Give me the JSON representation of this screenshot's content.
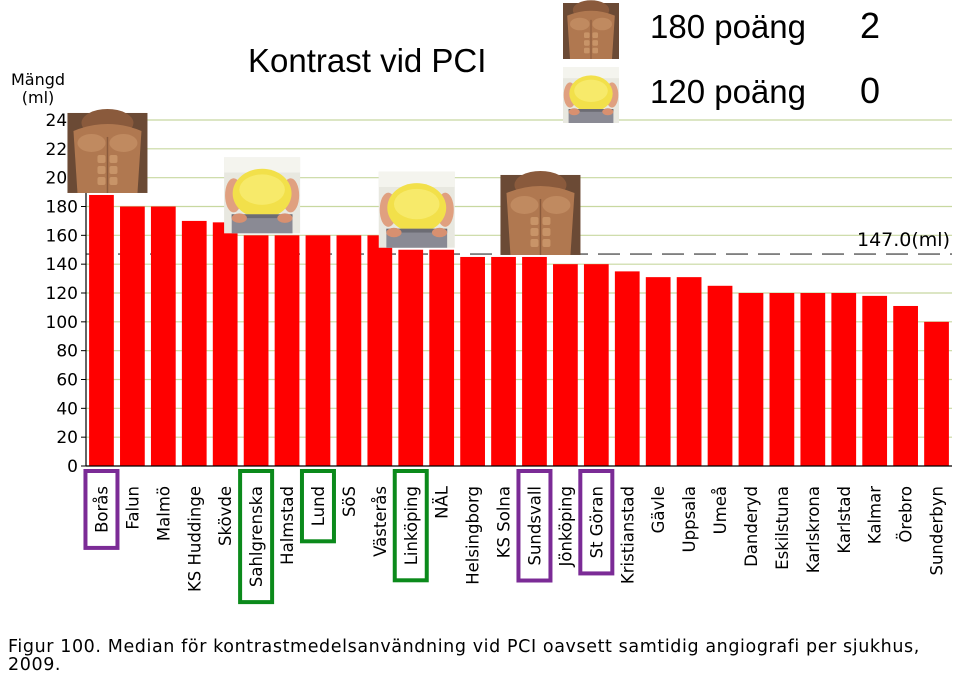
{
  "slide": {
    "title": "Kontrast vid PCI",
    "legend_rows": [
      {
        "label": "180 poäng",
        "count": "2",
        "icon": "muscular-torso-icon"
      },
      {
        "label": "120 poäng",
        "count": "0",
        "icon": "overweight-torso-icon"
      }
    ]
  },
  "chart_data": {
    "type": "bar",
    "title": "",
    "ylabel": "Mängd (ml)",
    "xlabel": "",
    "ylim": [
      0,
      240
    ],
    "yticks": [
      0,
      20,
      40,
      60,
      80,
      100,
      120,
      140,
      160,
      180,
      200,
      220,
      240
    ],
    "grid": true,
    "bar_color": "#ff0000",
    "grid_color": "#c8d8a0",
    "categories": [
      "Borås",
      "Falun",
      "Malmö",
      "KS Huddinge",
      "Skövde",
      "Sahlgrenska",
      "Halmstad",
      "Lund",
      "SöS",
      "Västerås",
      "Linköping",
      "NÄL",
      "Helsingborg",
      "KS Solna",
      "Sundsvall",
      "Jönköping",
      "St Göran",
      "Kristianstad",
      "Gävle",
      "Uppsala",
      "Umeå",
      "Danderyd",
      "Eskilstuna",
      "Karlskrona",
      "Karlstad",
      "Kalmar",
      "Örebro",
      "Sunderbyn"
    ],
    "values": [
      188,
      180,
      180,
      170,
      169,
      160,
      160,
      160,
      160,
      160,
      150,
      150,
      145,
      145,
      145,
      140,
      140,
      135,
      131,
      131,
      125,
      120,
      120,
      120,
      120,
      118,
      111,
      100
    ],
    "reference_line": {
      "value": 147.0,
      "label": "147.0(ml)"
    },
    "highlighted": {
      "purple": [
        "Borås",
        "Sundsvall",
        "St Göran"
      ],
      "green": [
        "Sahlgrenska",
        "Lund",
        "Linköping"
      ]
    },
    "highlight_colors": {
      "purple": "#7b2b96",
      "green": "#0b8a1b"
    },
    "photo_markers": [
      {
        "category": "Borås",
        "icon": "muscular-torso-icon"
      },
      {
        "category": "Sahlgrenska",
        "icon": "overweight-torso-icon"
      },
      {
        "category": "Linköping",
        "icon": "overweight-torso-icon"
      },
      {
        "category": "Sundsvall",
        "icon": "muscular-torso-icon"
      }
    ]
  },
  "caption": "Figur 100. Median för kontrastmedelsanvändning vid PCI oavsett samtidig angiografi per sjukhus, 2009."
}
